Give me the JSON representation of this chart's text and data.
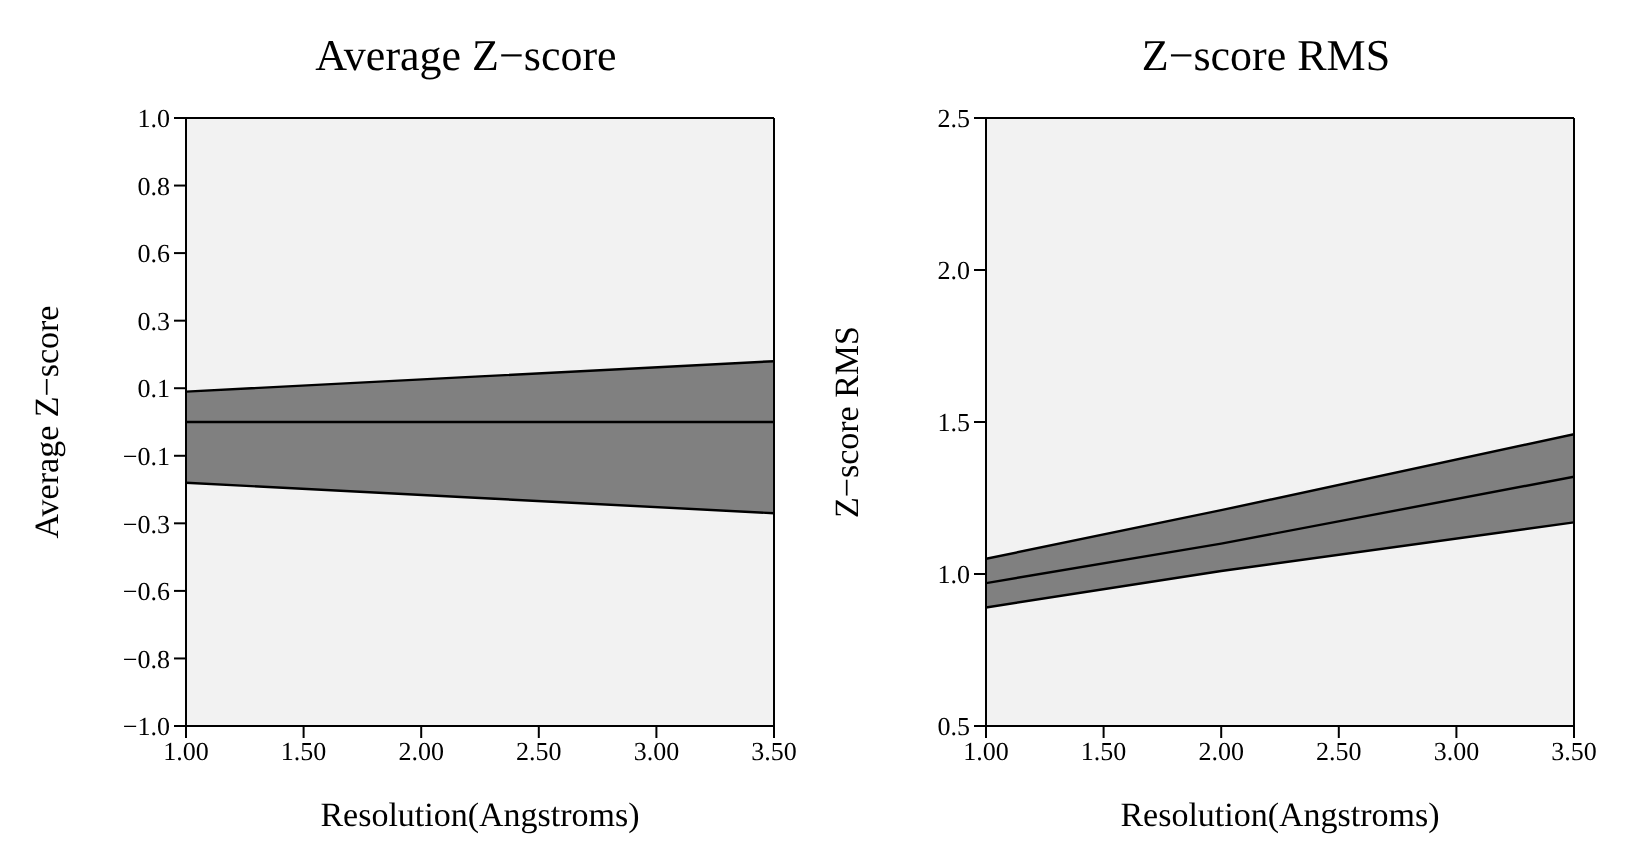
{
  "chart_data": [
    {
      "type": "line",
      "title": "Average Z−score",
      "xlabel": "Resolution(Angstroms)",
      "ylabel": "Average Z−score",
      "x": [
        1.0,
        2.25,
        3.5
      ],
      "series": [
        {
          "color": "#000000",
          "values": [
            0.0,
            0.0,
            0.0
          ],
          "lower": [
            -0.2,
            -0.25,
            -0.3
          ],
          "upper": [
            0.1,
            0.15,
            0.2
          ]
        },
        {
          "color": "#000000",
          "values": [
            -0.2,
            -0.25,
            -0.3
          ]
        },
        {
          "color": "#000000",
          "values": [
            0.1,
            0.15,
            0.2
          ]
        }
      ],
      "xlim": [
        1.0,
        3.5
      ],
      "xticks": [
        {
          "value": 1.0,
          "label": "1.00"
        },
        {
          "value": 1.5,
          "label": "1.50"
        },
        {
          "value": 2.0,
          "label": "2.00"
        },
        {
          "value": 2.5,
          "label": "2.50"
        },
        {
          "value": 3.0,
          "label": "3.00"
        },
        {
          "value": 3.5,
          "label": "3.50"
        }
      ],
      "ylim": [
        -1.0,
        1.0
      ],
      "yticks": [
        {
          "value": -1.0,
          "label": "−1.0"
        },
        {
          "value": -0.7778,
          "label": "−0.8"
        },
        {
          "value": -0.5556,
          "label": "−0.6"
        },
        {
          "value": -0.3333,
          "label": "−0.3"
        },
        {
          "value": -0.1111,
          "label": "−0.1"
        },
        {
          "value": 0.1111,
          "label": "0.1"
        },
        {
          "value": 0.3333,
          "label": "0.3"
        },
        {
          "value": 0.5556,
          "label": "0.6"
        },
        {
          "value": 0.7778,
          "label": "0.8"
        },
        {
          "value": 1.0,
          "label": "1.0"
        }
      ]
    },
    {
      "type": "line",
      "title": "Z−score RMS",
      "xlabel": "Resolution(Angstroms)",
      "ylabel": "Z−score RMS",
      "x": [
        1.0,
        2.0,
        3.5
      ],
      "series": [
        {
          "color": "#000000",
          "values": [
            0.97,
            1.1,
            1.32
          ],
          "lower": [
            0.89,
            1.01,
            1.17
          ],
          "upper": [
            1.05,
            1.21,
            1.46
          ]
        },
        {
          "color": "#000000",
          "values": [
            0.89,
            1.01,
            1.17
          ]
        },
        {
          "color": "#000000",
          "values": [
            1.05,
            1.21,
            1.46
          ]
        }
      ],
      "xlim": [
        1.0,
        3.5
      ],
      "xticks": [
        {
          "value": 1.0,
          "label": "1.00"
        },
        {
          "value": 1.5,
          "label": "1.50"
        },
        {
          "value": 2.0,
          "label": "2.00"
        },
        {
          "value": 2.5,
          "label": "2.50"
        },
        {
          "value": 3.0,
          "label": "3.00"
        },
        {
          "value": 3.5,
          "label": "3.50"
        }
      ],
      "ylim": [
        0.5,
        2.5
      ],
      "yticks": [
        {
          "value": 0.5,
          "label": "0.5"
        },
        {
          "value": 1.0,
          "label": "1.0"
        },
        {
          "value": 1.5,
          "label": "1.5"
        },
        {
          "value": 2.0,
          "label": "2.0"
        },
        {
          "value": 2.5,
          "label": "2.5"
        }
      ]
    }
  ]
}
